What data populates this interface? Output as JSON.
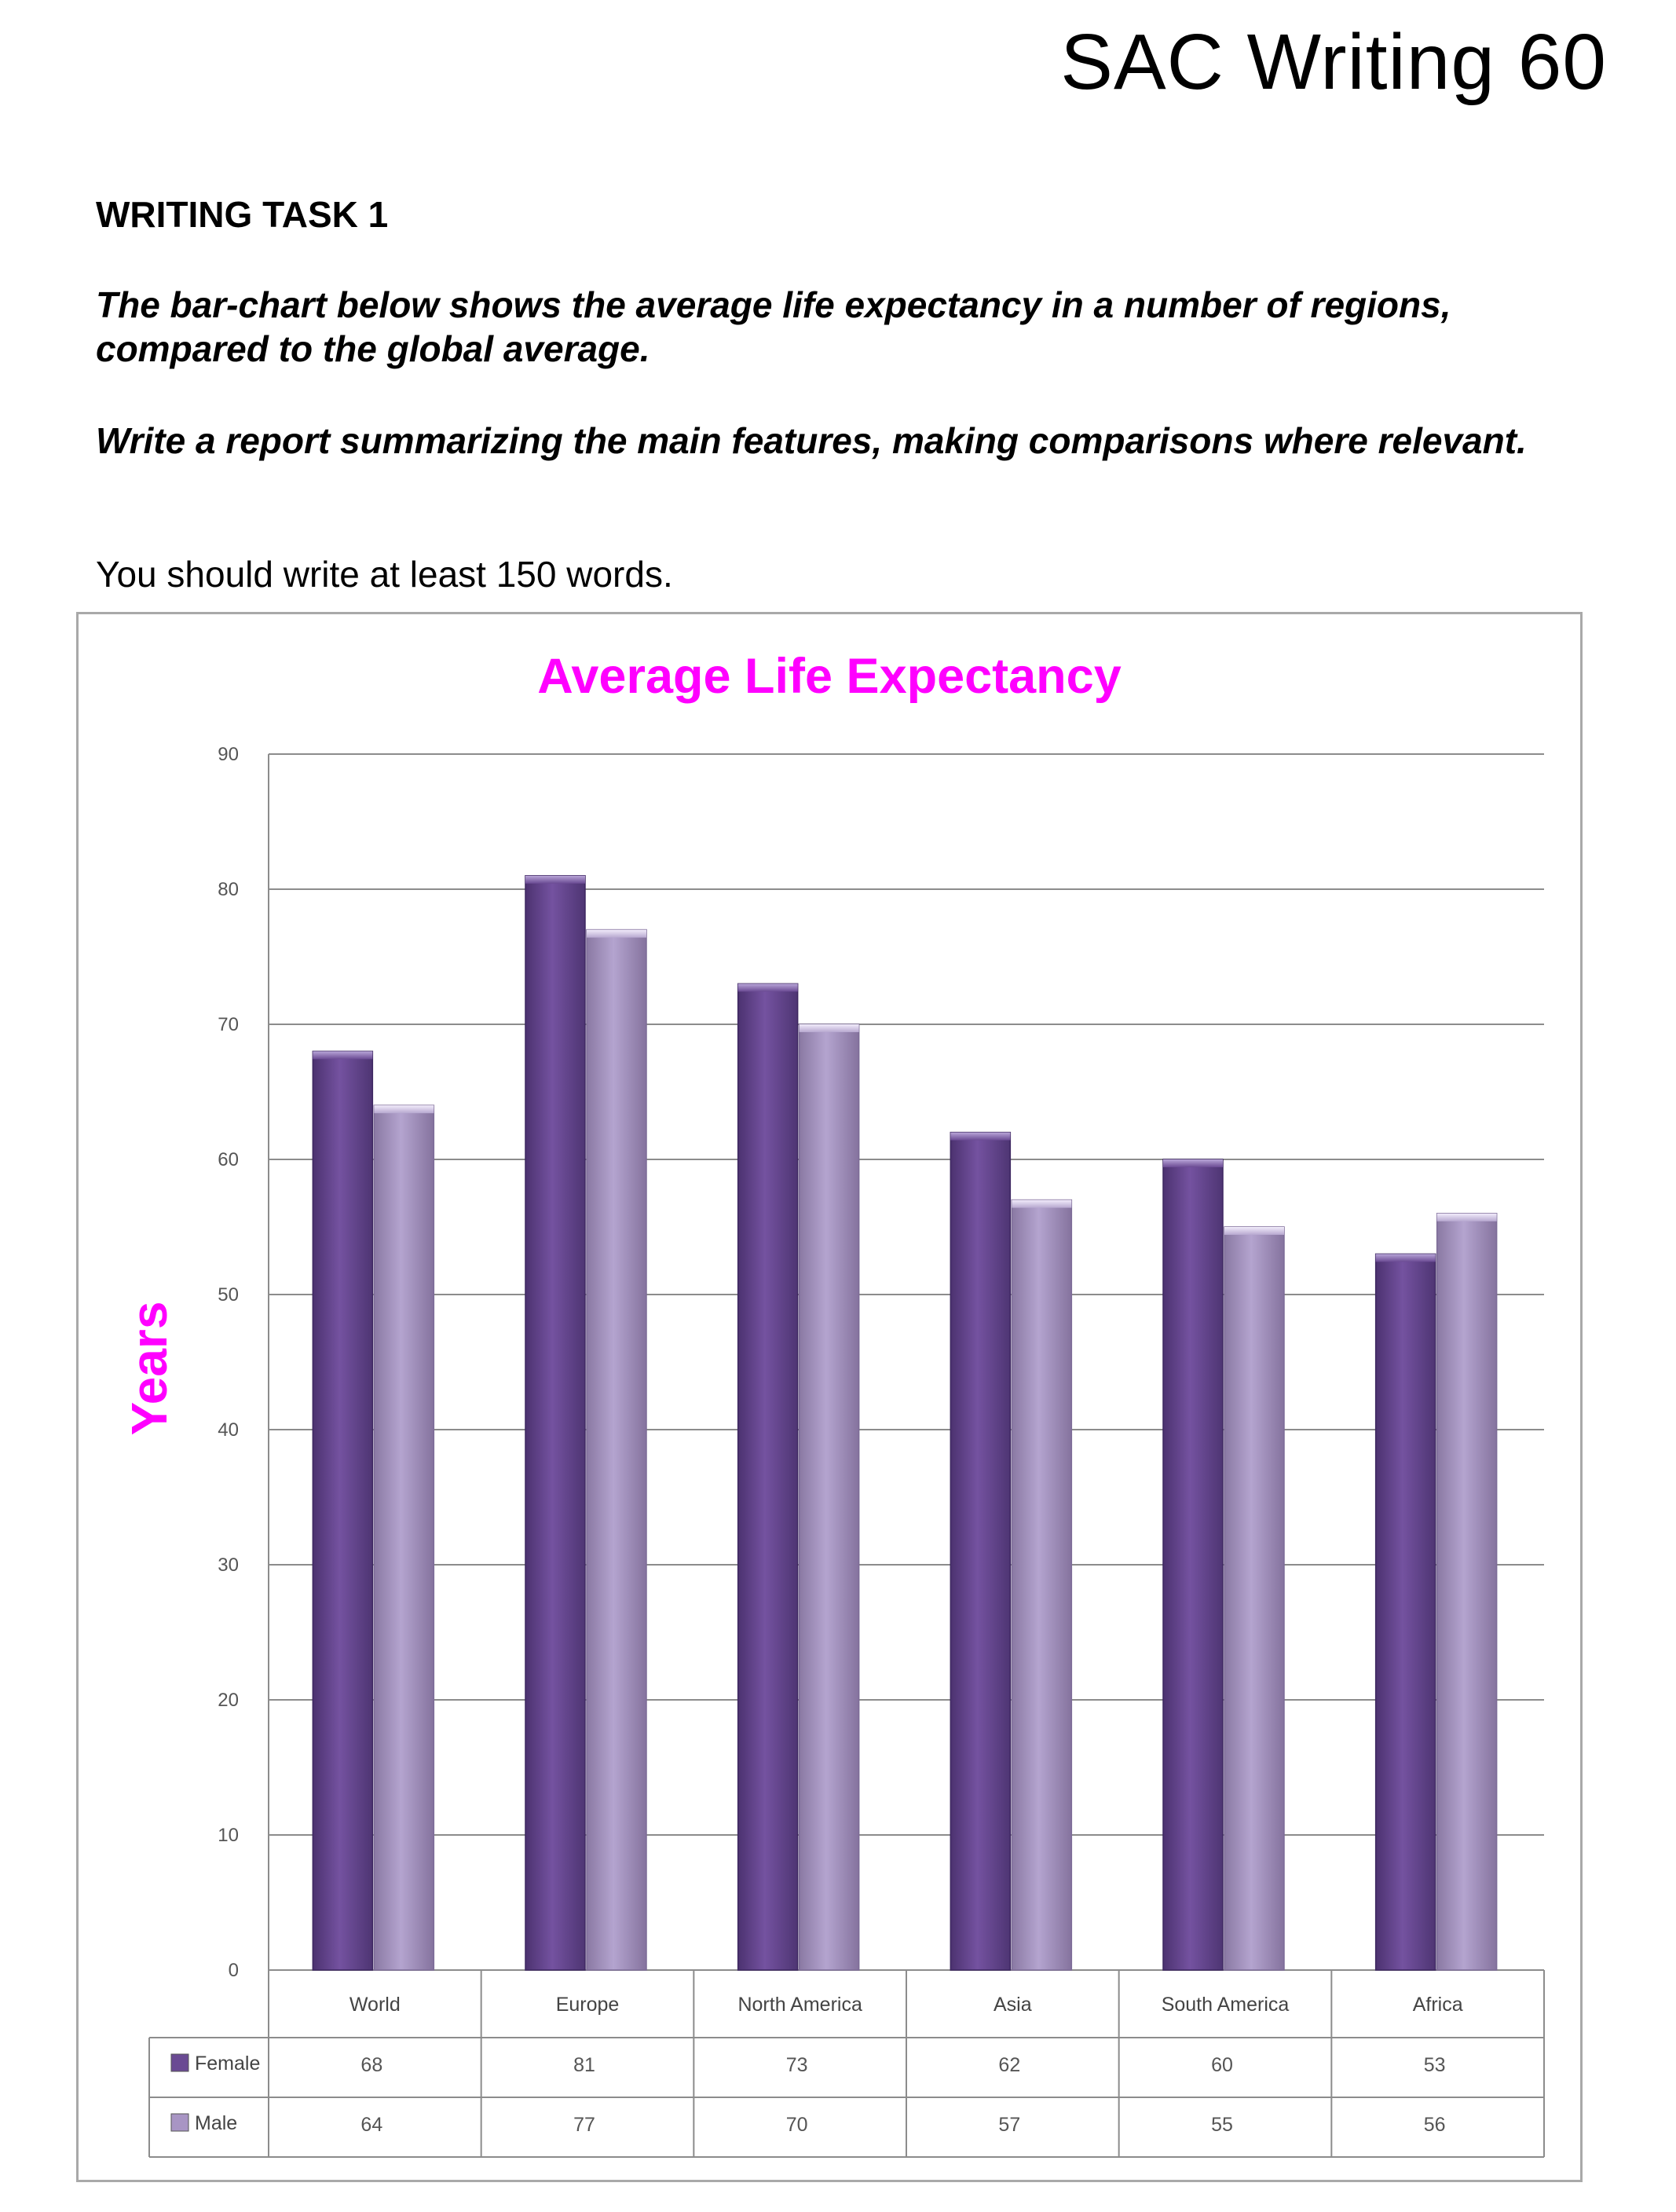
{
  "header": {
    "title": "SAC Writing 60"
  },
  "task": {
    "heading": "WRITING TASK 1",
    "prompt_1": "The bar-chart below shows the average life expectancy in a number of regions, compared to the global average.",
    "prompt_2": "Write a report summarizing the main features, making comparisons where relevant.",
    "instruction": "You should write at least 150 words."
  },
  "colors": {
    "title": "#ff00ff",
    "female": "#6a4a93",
    "male": "#a895c4",
    "grid": "#8c8c8c"
  },
  "chart_data": {
    "type": "bar",
    "title": "Average Life Expectancy",
    "xlabel": "",
    "ylabel": "Years",
    "ylim": [
      0,
      90
    ],
    "yticks": [
      0,
      10,
      20,
      30,
      40,
      50,
      60,
      70,
      80,
      90
    ],
    "categories": [
      "World",
      "Europe",
      "North America",
      "Asia",
      "South America",
      "Africa"
    ],
    "series": [
      {
        "name": "Female",
        "values": [
          68,
          81,
          73,
          62,
          60,
          53
        ]
      },
      {
        "name": "Male",
        "values": [
          64,
          77,
          70,
          57,
          55,
          56
        ]
      }
    ],
    "grid": true,
    "legend": "data-table-left"
  }
}
